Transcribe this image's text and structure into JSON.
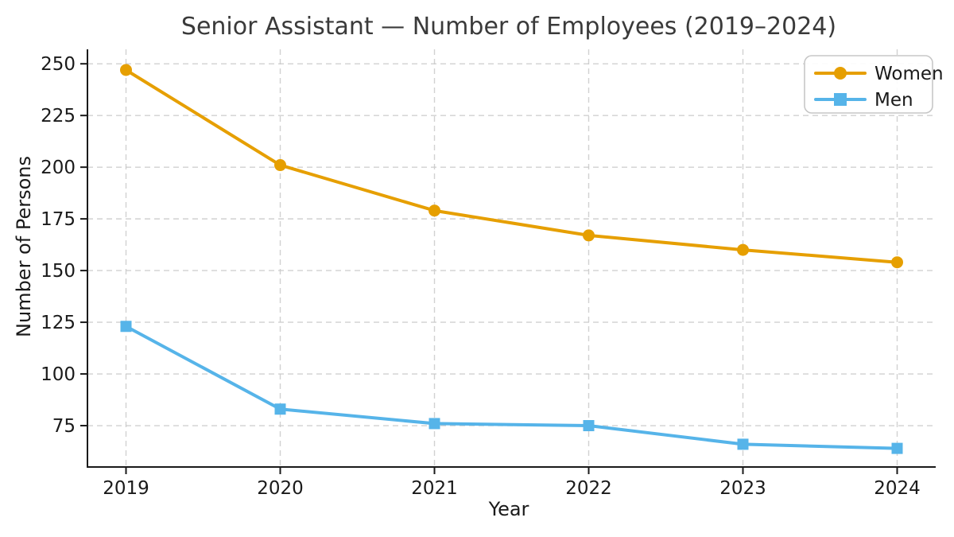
{
  "chart_data": {
    "type": "line",
    "title": "Senior Assistant — Number of Employees (2019–2024)",
    "xlabel": "Year",
    "ylabel": "Number of Persons",
    "x": [
      2019,
      2020,
      2021,
      2022,
      2023,
      2024
    ],
    "series": [
      {
        "name": "Women",
        "color": "#E69F00",
        "marker": "circle",
        "values": [
          247,
          201,
          179,
          167,
          160,
          154
        ]
      },
      {
        "name": "Men",
        "color": "#56B4E9",
        "marker": "square",
        "values": [
          123,
          83,
          76,
          75,
          66,
          64
        ]
      }
    ],
    "xlim": [
      2018.75,
      2024.25
    ],
    "ylim": [
      55,
      257
    ],
    "yticks": [
      75,
      100,
      125,
      150,
      175,
      200,
      225,
      250
    ],
    "xticks": [
      2019,
      2020,
      2021,
      2022,
      2023,
      2024
    ],
    "grid": true,
    "grid_style": "dashed",
    "legend_position": "upper right",
    "colors": {
      "grid": "#c9c9c9",
      "spine": "#1a1a1a",
      "tick_text": "#1a1a1a",
      "title_text": "#3a3a3a",
      "legend_border": "#c7c7c7",
      "background": "#ffffff"
    }
  }
}
